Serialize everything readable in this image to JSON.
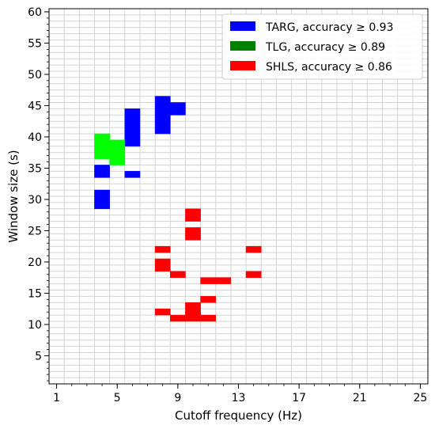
{
  "chart_data": {
    "type": "heatmap",
    "xlabel": "Cutoff frequency (Hz)",
    "ylabel": "Window size (s)",
    "xlim": [
      0.5,
      25.5
    ],
    "ylim": [
      0.5,
      60.5
    ],
    "xticks": [
      1,
      5,
      9,
      13,
      17,
      21,
      25
    ],
    "yticks": [
      5,
      10,
      15,
      20,
      25,
      30,
      35,
      40,
      45,
      50,
      55,
      60
    ],
    "grid": true,
    "legend_position": "top-right",
    "series": [
      {
        "name": "TARG, accuracy ≥ 0.93",
        "color": "#0000ff",
        "cells": [
          [
            4,
            29
          ],
          [
            4,
            30
          ],
          [
            4,
            31
          ],
          [
            4,
            34
          ],
          [
            4,
            35
          ],
          [
            6,
            34
          ],
          [
            6,
            39
          ],
          [
            6,
            40
          ],
          [
            6,
            41
          ],
          [
            6,
            42
          ],
          [
            6,
            43
          ],
          [
            6,
            44
          ],
          [
            8,
            41
          ],
          [
            8,
            42
          ],
          [
            8,
            43
          ],
          [
            8,
            44
          ],
          [
            8,
            45
          ],
          [
            8,
            46
          ],
          [
            9,
            44
          ],
          [
            9,
            45
          ]
        ]
      },
      {
        "name": "TLG, accuracy ≥ 0.89",
        "color": "#00ff00",
        "cells": [
          [
            4,
            37
          ],
          [
            4,
            38
          ],
          [
            4,
            39
          ],
          [
            4,
            40
          ],
          [
            5,
            36
          ],
          [
            5,
            37
          ],
          [
            5,
            38
          ],
          [
            5,
            39
          ]
        ]
      },
      {
        "name": "SHLS, accuracy ≥ 0.86",
        "color": "#ff0000",
        "cells": [
          [
            10,
            27
          ],
          [
            10,
            28
          ],
          [
            10,
            24
          ],
          [
            10,
            25
          ],
          [
            8,
            22
          ],
          [
            8,
            19
          ],
          [
            8,
            20
          ],
          [
            9,
            18
          ],
          [
            11,
            17
          ],
          [
            12,
            17
          ],
          [
            14,
            22
          ],
          [
            14,
            18
          ],
          [
            11,
            14
          ],
          [
            10,
            12
          ],
          [
            10,
            13
          ],
          [
            8,
            12
          ],
          [
            9,
            11
          ],
          [
            10,
            11
          ],
          [
            11,
            11
          ]
        ]
      }
    ]
  }
}
